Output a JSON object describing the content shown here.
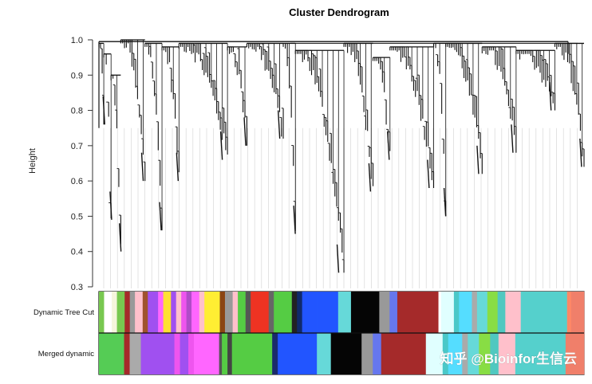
{
  "chart_data": {
    "type": "dendrogram",
    "title": "Cluster Dendrogram",
    "ylabel": "Height",
    "ylim": [
      0.3,
      1.0
    ],
    "yticks": [
      "0.3",
      "0.4",
      "0.5",
      "0.6",
      "0.7",
      "0.8",
      "0.9",
      "1.0"
    ],
    "branches": [
      {
        "start": 0.0,
        "end": 0.01,
        "min": 0.76,
        "trunk": 0.99
      },
      {
        "start": 0.01,
        "end": 0.025,
        "min": 0.49,
        "trunk": 0.96
      },
      {
        "start": 0.025,
        "end": 0.045,
        "min": 0.4,
        "trunk": 0.9
      },
      {
        "start": 0.045,
        "end": 0.095,
        "min": 0.6,
        "trunk": 1.0
      },
      {
        "start": 0.095,
        "end": 0.13,
        "min": 0.46,
        "trunk": 0.99
      },
      {
        "start": 0.13,
        "end": 0.165,
        "min": 0.6,
        "trunk": 0.98
      },
      {
        "start": 0.165,
        "end": 0.265,
        "min": 0.66,
        "trunk": 0.99
      },
      {
        "start": 0.265,
        "end": 0.305,
        "min": 0.7,
        "trunk": 0.98
      },
      {
        "start": 0.305,
        "end": 0.38,
        "min": 0.72,
        "trunk": 0.99
      },
      {
        "start": 0.38,
        "end": 0.405,
        "min": 0.45,
        "trunk": 0.99
      },
      {
        "start": 0.405,
        "end": 0.505,
        "min": 0.34,
        "trunk": 0.97
      },
      {
        "start": 0.505,
        "end": 0.565,
        "min": 0.57,
        "trunk": 0.99
      },
      {
        "start": 0.565,
        "end": 0.6,
        "min": 0.66,
        "trunk": 0.95
      },
      {
        "start": 0.6,
        "end": 0.69,
        "min": 0.58,
        "trunk": 0.98
      },
      {
        "start": 0.69,
        "end": 0.715,
        "min": 0.5,
        "trunk": 0.99
      },
      {
        "start": 0.715,
        "end": 0.79,
        "min": 0.62,
        "trunk": 0.99
      },
      {
        "start": 0.79,
        "end": 0.86,
        "min": 0.68,
        "trunk": 0.98
      },
      {
        "start": 0.86,
        "end": 0.94,
        "min": 0.8,
        "trunk": 0.97
      },
      {
        "start": 0.94,
        "end": 1.0,
        "min": 0.64,
        "trunk": 0.99
      }
    ],
    "color_rows": [
      {
        "label": "Dynamic Tree Cut",
        "segments": [
          {
            "f": 0.01,
            "color": "#78c850"
          },
          {
            "f": 0.015,
            "color": "#ffffff"
          },
          {
            "f": 0.01,
            "color": "#f5f5dc"
          },
          {
            "f": 0.015,
            "color": "#78c850"
          },
          {
            "f": 0.01,
            "color": "#a52a2a"
          },
          {
            "f": 0.01,
            "color": "#999999"
          },
          {
            "f": 0.015,
            "color": "#ffc0cb"
          },
          {
            "f": 0.01,
            "color": "#a0522d"
          },
          {
            "f": 0.02,
            "color": "#a050f0"
          },
          {
            "f": 0.01,
            "color": "#ff66ff"
          },
          {
            "f": 0.015,
            "color": "#ffe033"
          },
          {
            "f": 0.01,
            "color": "#a050f0"
          },
          {
            "f": 0.01,
            "color": "#ffc0cb"
          },
          {
            "f": 0.01,
            "color": "#ee55ee"
          },
          {
            "f": 0.01,
            "color": "#b04cc8"
          },
          {
            "f": 0.015,
            "color": "#ff66ff"
          },
          {
            "f": 0.01,
            "color": "#ffc0cb"
          },
          {
            "f": 0.03,
            "color": "#ffee33"
          },
          {
            "f": 0.01,
            "color": "#8b4513"
          },
          {
            "f": 0.015,
            "color": "#999999"
          },
          {
            "f": 0.01,
            "color": "#ffc0cb"
          },
          {
            "f": 0.015,
            "color": "#55cc44"
          },
          {
            "f": 0.01,
            "color": "#555555"
          },
          {
            "f": 0.035,
            "color": "#ee3322"
          },
          {
            "f": 0.01,
            "color": "#666666"
          },
          {
            "f": 0.035,
            "color": "#55cc44"
          },
          {
            "f": 0.01,
            "color": "#222222"
          },
          {
            "f": 0.01,
            "color": "#102a6b"
          },
          {
            "f": 0.03,
            "color": "#2255ff"
          },
          {
            "f": 0.04,
            "color": "#2255ff"
          },
          {
            "f": 0.025,
            "color": "#66d9d9"
          },
          {
            "f": 0.055,
            "color": "#050505"
          },
          {
            "f": 0.02,
            "color": "#999999"
          },
          {
            "f": 0.015,
            "color": "#6677ee"
          },
          {
            "f": 0.08,
            "color": "#a52a2a"
          },
          {
            "f": 0.005,
            "color": "#ffffff"
          },
          {
            "f": 0.025,
            "color": "#e0ffff"
          },
          {
            "f": 0.01,
            "color": "#4ac8c8"
          },
          {
            "f": 0.025,
            "color": "#55ddff"
          },
          {
            "f": 0.01,
            "color": "#aaaaaa"
          },
          {
            "f": 0.02,
            "color": "#66d9d9"
          },
          {
            "f": 0.02,
            "color": "#88dd44"
          },
          {
            "f": 0.015,
            "color": "#50c8c0"
          },
          {
            "f": 0.03,
            "color": "#ffc0cb"
          },
          {
            "f": 0.09,
            "color": "#55d0cc"
          },
          {
            "f": 0.008,
            "color": "#ff8866"
          },
          {
            "f": 0.025,
            "color": "#f07f6a"
          }
        ]
      },
      {
        "label": "Merged dynamic",
        "segments": [
          {
            "f": 0.045,
            "color": "#55cc55"
          },
          {
            "f": 0.01,
            "color": "#a52a2a"
          },
          {
            "f": 0.02,
            "color": "#aaaaaa"
          },
          {
            "f": 0.06,
            "color": "#a050f0"
          },
          {
            "f": 0.01,
            "color": "#ee55ee"
          },
          {
            "f": 0.015,
            "color": "#a050f0"
          },
          {
            "f": 0.01,
            "color": "#ee55ee"
          },
          {
            "f": 0.045,
            "color": "#ff66ff"
          },
          {
            "f": 0.005,
            "color": "#555555"
          },
          {
            "f": 0.01,
            "color": "#55cc44"
          },
          {
            "f": 0.008,
            "color": "#444444"
          },
          {
            "f": 0.072,
            "color": "#55cc44"
          },
          {
            "f": 0.01,
            "color": "#1a2a6b"
          },
          {
            "f": 0.07,
            "color": "#2255ff"
          },
          {
            "f": 0.025,
            "color": "#66d9d9"
          },
          {
            "f": 0.055,
            "color": "#050505"
          },
          {
            "f": 0.02,
            "color": "#999999"
          },
          {
            "f": 0.015,
            "color": "#6677ee"
          },
          {
            "f": 0.08,
            "color": "#a52a2a"
          },
          {
            "f": 0.03,
            "color": "#e0ffff"
          },
          {
            "f": 0.01,
            "color": "#4ac8c8"
          },
          {
            "f": 0.025,
            "color": "#55ddff"
          },
          {
            "f": 0.01,
            "color": "#aaaaaa"
          },
          {
            "f": 0.02,
            "color": "#66d9d9"
          },
          {
            "f": 0.02,
            "color": "#88dd44"
          },
          {
            "f": 0.015,
            "color": "#50c8c0"
          },
          {
            "f": 0.03,
            "color": "#ffc0cb"
          },
          {
            "f": 0.09,
            "color": "#55d0cc"
          },
          {
            "f": 0.033,
            "color": "#f07f6a"
          }
        ]
      }
    ]
  },
  "watermark": "知乎 @Bioinfor生信云"
}
